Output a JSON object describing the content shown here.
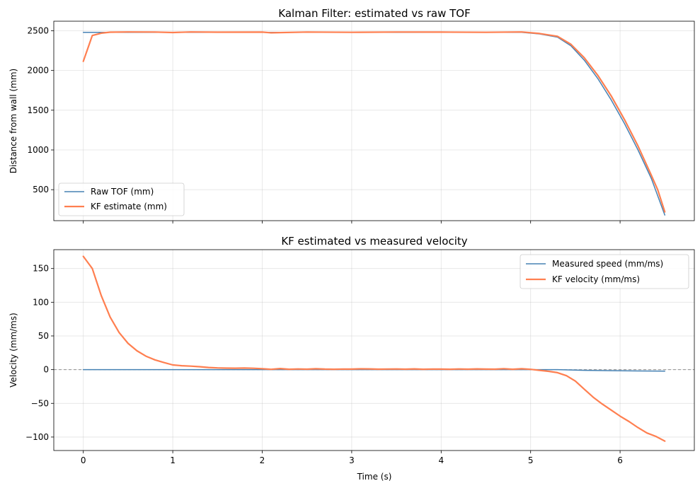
{
  "chart_data": [
    {
      "type": "line",
      "title": "Kalman Filter: estimated vs raw TOF",
      "xlabel": "",
      "ylabel": "Distance from wall (mm)",
      "xlim": [
        -0.33,
        6.83
      ],
      "ylim": [
        110,
        2620
      ],
      "xticks": [
        0,
        1,
        2,
        3,
        4,
        5,
        6
      ],
      "xticklabels_visible": false,
      "yticks": [
        500,
        1000,
        1500,
        2000,
        2500
      ],
      "yticklabels": [
        "500",
        "1000",
        "1500",
        "2000",
        "2500"
      ],
      "grid": true,
      "legend": "lower-left",
      "series": [
        {
          "name": "Raw TOF (mm)",
          "color": "#4682b4",
          "linewidth": 1.5,
          "x": [
            0,
            0.3,
            1.0,
            2.0,
            3.0,
            4.0,
            4.9,
            5.1,
            5.3,
            5.45,
            5.6,
            5.75,
            5.9,
            6.05,
            6.2,
            6.35,
            6.5
          ],
          "y": [
            2480,
            2480,
            2480,
            2480,
            2480,
            2480,
            2480,
            2460,
            2420,
            2310,
            2130,
            1900,
            1630,
            1330,
            1000,
            640,
            180
          ]
        },
        {
          "name": "KF estimate (mm)",
          "color": "#ff7f50",
          "linewidth": 2.2,
          "x": [
            0,
            0.1,
            0.2,
            0.3,
            0.5,
            0.8,
            1.0,
            1.2,
            1.5,
            2.0,
            2.1,
            2.5,
            3.0,
            3.5,
            4.0,
            4.5,
            4.9,
            5.1,
            5.3,
            5.45,
            5.6,
            5.75,
            5.9,
            6.05,
            6.2,
            6.35,
            6.42,
            6.5
          ],
          "y": [
            2115,
            2440,
            2470,
            2482,
            2485,
            2484,
            2478,
            2485,
            2482,
            2483,
            2474,
            2484,
            2480,
            2484,
            2483,
            2480,
            2485,
            2465,
            2430,
            2330,
            2160,
            1940,
            1680,
            1380,
            1050,
            680,
            500,
            220
          ]
        }
      ]
    },
    {
      "type": "line",
      "title": "KF estimated vs measured velocity",
      "xlabel": "Time (s)",
      "ylabel": "Velocity (mm/ms)",
      "xlim": [
        -0.33,
        6.83
      ],
      "ylim": [
        -120,
        178
      ],
      "xticks": [
        0,
        1,
        2,
        3,
        4,
        5,
        6
      ],
      "xticklabels": [
        "0",
        "1",
        "2",
        "3",
        "4",
        "5",
        "6"
      ],
      "yticks": [
        -100,
        -50,
        0,
        50,
        100,
        150
      ],
      "yticklabels": [
        "−100",
        "−50",
        "0",
        "50",
        "100",
        "150"
      ],
      "grid": true,
      "legend": "upper-right",
      "hline": {
        "y": 0,
        "style": "dashed",
        "color": "#808080"
      },
      "series": [
        {
          "name": "Measured speed (mm/ms)",
          "color": "#4682b4",
          "linewidth": 1.5,
          "x": [
            0,
            1.0,
            2.0,
            3.0,
            4.0,
            5.0,
            5.3,
            5.6,
            5.9,
            6.2,
            6.5
          ],
          "y": [
            0,
            0,
            0,
            0,
            0,
            0,
            0,
            -1,
            -1.5,
            -2,
            -2.3
          ]
        },
        {
          "name": "KF velocity (mm/ms)",
          "color": "#ff7f50",
          "linewidth": 2.2,
          "x": [
            0,
            0.1,
            0.2,
            0.3,
            0.4,
            0.5,
            0.6,
            0.7,
            0.8,
            0.9,
            1.0,
            1.1,
            1.2,
            1.3,
            1.4,
            1.5,
            1.6,
            1.7,
            1.8,
            1.9,
            2.0,
            2.1,
            2.2,
            2.3,
            2.4,
            2.5,
            2.6,
            2.7,
            2.8,
            2.9,
            3.0,
            3.1,
            3.2,
            3.3,
            3.4,
            3.5,
            3.6,
            3.7,
            3.8,
            3.9,
            4.0,
            4.1,
            4.2,
            4.3,
            4.4,
            4.5,
            4.6,
            4.7,
            4.8,
            4.9,
            5.0,
            5.1,
            5.2,
            5.3,
            5.4,
            5.5,
            5.6,
            5.7,
            5.8,
            5.9,
            6.0,
            6.1,
            6.2,
            6.3,
            6.4,
            6.5
          ],
          "y": [
            168,
            150,
            110,
            78,
            55,
            39,
            28,
            20,
            14.5,
            10.5,
            7,
            5.8,
            5.2,
            4.3,
            3.2,
            2.6,
            2.2,
            2.1,
            2.4,
            2.0,
            1.4,
            0.5,
            1.6,
            0.6,
            1.0,
            0.7,
            1.3,
            0.8,
            0.6,
            0.9,
            0.8,
            1.2,
            1.1,
            0.7,
            0.9,
            1.0,
            0.7,
            1.1,
            0.6,
            0.9,
            0.8,
            0.6,
            1.0,
            0.7,
            1.1,
            0.8,
            0.7,
            1.4,
            0.6,
            1.3,
            0.5,
            -1,
            -2.5,
            -4.5,
            -9,
            -17,
            -29,
            -41,
            -51,
            -60,
            -69,
            -77,
            -86,
            -94,
            -99,
            -106
          ]
        }
      ]
    }
  ]
}
